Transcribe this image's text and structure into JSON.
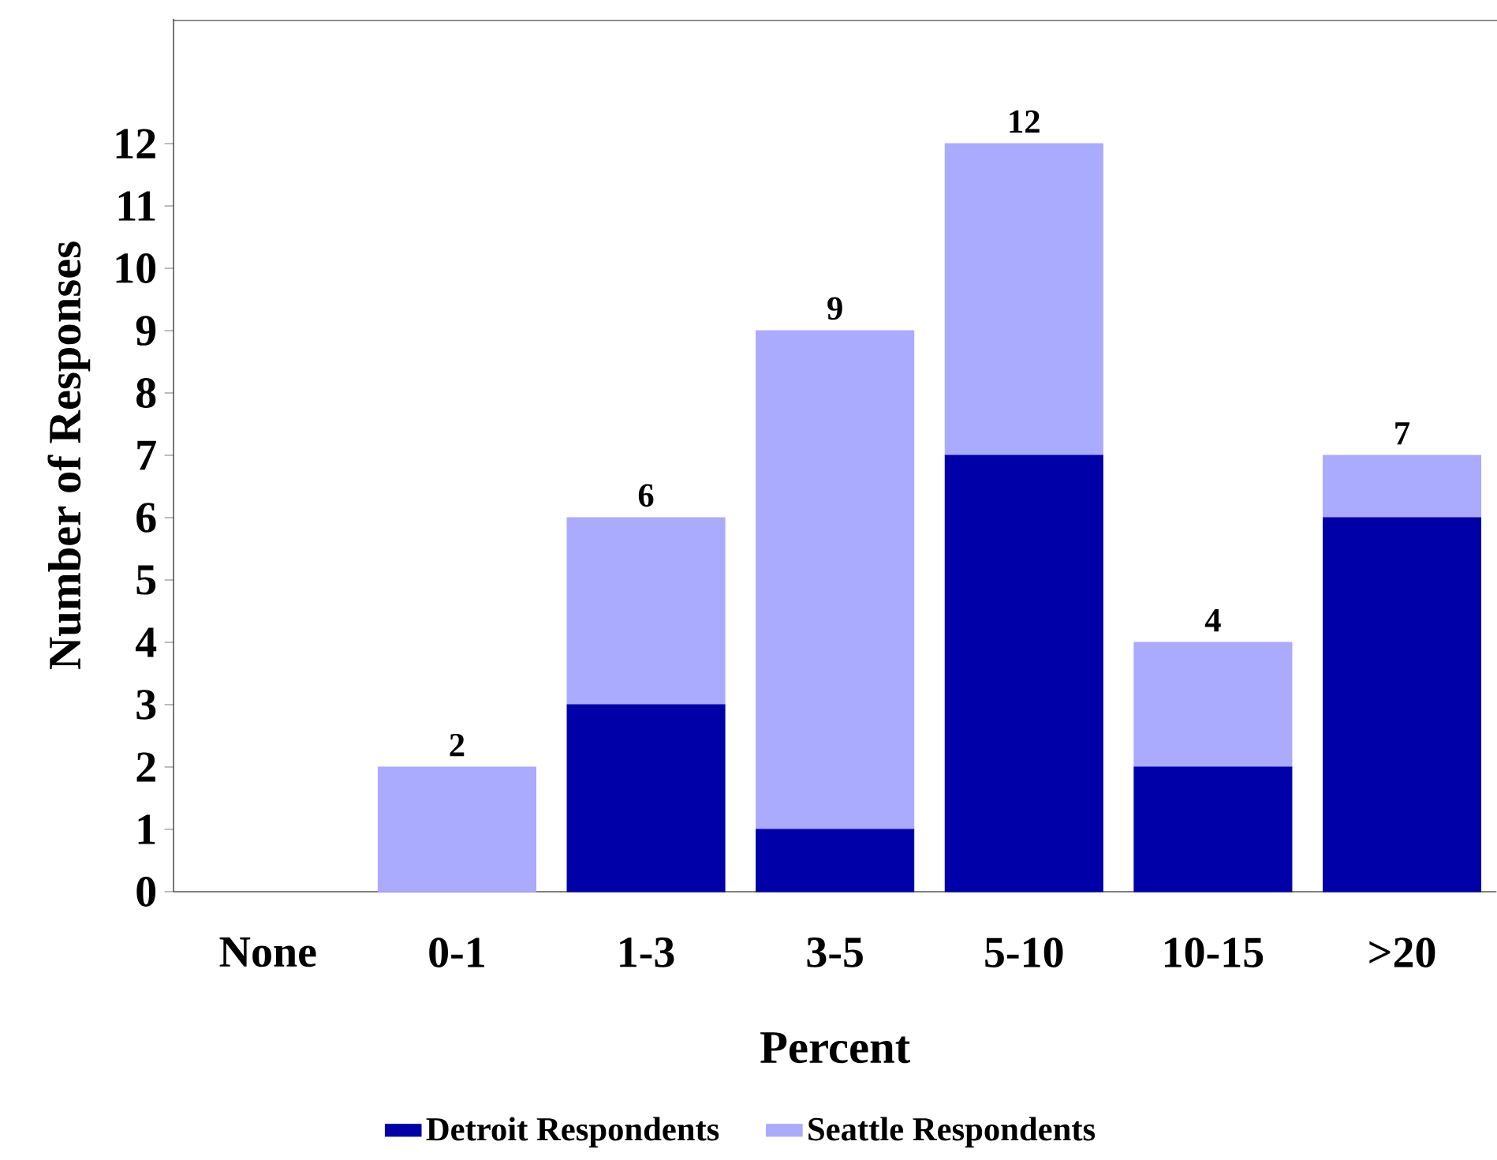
{
  "chart_data": {
    "type": "bar",
    "stacked": true,
    "xlabel": "Percent",
    "ylabel": "Number of Responses",
    "categories": [
      "None",
      "0-1",
      "1-3",
      "3-5",
      "5-10",
      "10-15",
      ">20"
    ],
    "series": [
      {
        "name": "Detroit Respondents",
        "color": "#0000a8",
        "values": [
          0,
          0,
          3,
          1,
          7,
          2,
          6
        ]
      },
      {
        "name": "Seattle Respondents",
        "color": "#aaaaff",
        "values": [
          0,
          2,
          3,
          8,
          5,
          2,
          1
        ]
      }
    ],
    "totals": [
      null,
      "2",
      "6",
      "9",
      "12",
      "4",
      "7"
    ],
    "ylim": [
      0,
      14
    ],
    "yticks": [
      0,
      1,
      2,
      3,
      4,
      5,
      6,
      7,
      8,
      9,
      10,
      11,
      12
    ],
    "grid": false,
    "legend": "bottom"
  }
}
